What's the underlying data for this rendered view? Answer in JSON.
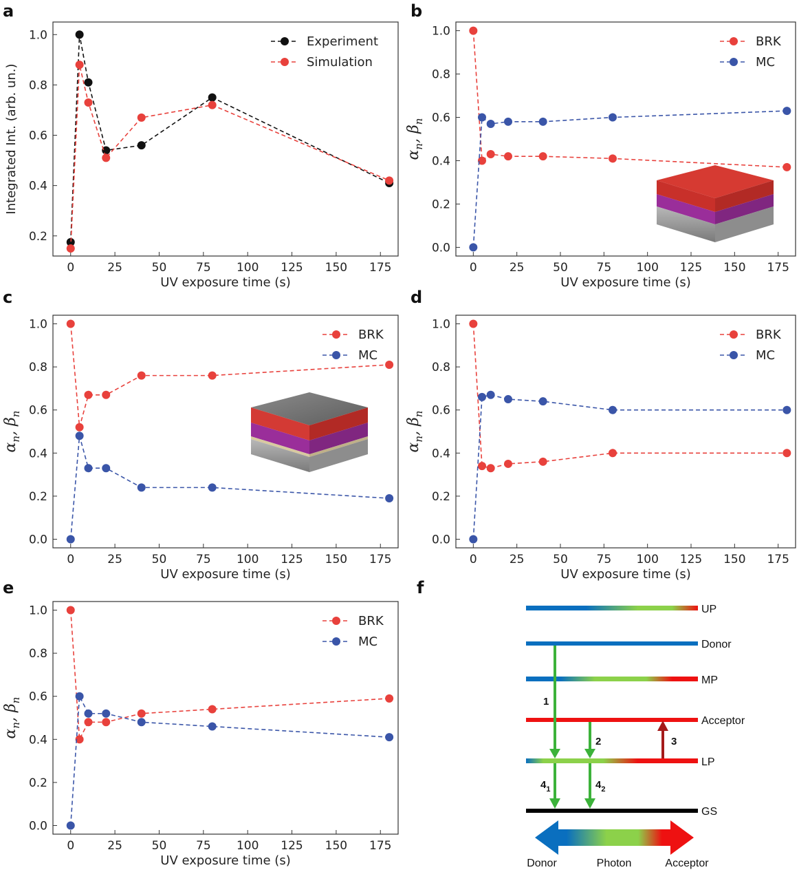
{
  "colors": {
    "experiment": "#111111",
    "simulation": "#e8413c",
    "brk": "#e8413c",
    "mc": "#3a55a8",
    "donor_blue": "#0a6fbf",
    "photon_green": "#8cd14a",
    "acceptor_red": "#ee1111",
    "arrow_green": "#3cb23a",
    "arrow_darkred": "#a51b1b",
    "gs_black": "#000000"
  },
  "chart_data": [
    {
      "panel": "a",
      "type": "line",
      "xlabel": "UV exposure time (s)",
      "ylabel": "Integrated Int. (arb. un.)",
      "xlim": [
        -10,
        185
      ],
      "ylim": [
        0.12,
        1.05
      ],
      "xticks": [
        0,
        25,
        50,
        75,
        100,
        125,
        150,
        175
      ],
      "yticks": [
        0.2,
        0.4,
        0.6,
        0.8,
        1.0
      ],
      "legend_position": "top-right",
      "series": [
        {
          "name": "Experiment",
          "color_key": "experiment",
          "x": [
            0,
            5,
            10,
            20,
            40,
            80,
            180
          ],
          "y": [
            0.175,
            1.0,
            0.81,
            0.54,
            0.56,
            0.75,
            0.41
          ]
        },
        {
          "name": "Simulation",
          "color_key": "simulation",
          "x": [
            0,
            5,
            10,
            20,
            40,
            80,
            180
          ],
          "y": [
            0.15,
            0.88,
            0.73,
            0.51,
            0.67,
            0.72,
            0.42
          ]
        }
      ]
    },
    {
      "panel": "b",
      "type": "line",
      "xlabel": "UV exposure time (s)",
      "ylabel_latex": "αn, βn",
      "xlim": [
        -10,
        185
      ],
      "ylim": [
        -0.04,
        1.04
      ],
      "xticks": [
        0,
        25,
        50,
        75,
        100,
        125,
        150,
        175
      ],
      "yticks": [
        0.0,
        0.2,
        0.4,
        0.6,
        0.8,
        1.0
      ],
      "legend_position": "top-right",
      "inset": "red-purple-grey",
      "series": [
        {
          "name": "BRK",
          "color_key": "brk",
          "x": [
            0,
            5,
            10,
            20,
            40,
            80,
            180
          ],
          "y": [
            1.0,
            0.4,
            0.43,
            0.42,
            0.42,
            0.41,
            0.37
          ]
        },
        {
          "name": "MC",
          "color_key": "mc",
          "x": [
            0,
            5,
            10,
            20,
            40,
            80,
            180
          ],
          "y": [
            0.0,
            0.6,
            0.57,
            0.58,
            0.58,
            0.6,
            0.63
          ]
        }
      ]
    },
    {
      "panel": "c",
      "type": "line",
      "xlabel": "UV exposure time (s)",
      "ylabel_latex": "αn, βn",
      "xlim": [
        -10,
        185
      ],
      "ylim": [
        -0.04,
        1.04
      ],
      "xticks": [
        0,
        25,
        50,
        75,
        100,
        125,
        150,
        175
      ],
      "yticks": [
        0.0,
        0.2,
        0.4,
        0.6,
        0.8,
        1.0
      ],
      "legend_position": "top-right",
      "inset": "grey-red-purple-grey",
      "series": [
        {
          "name": "BRK",
          "color_key": "brk",
          "x": [
            0,
            5,
            10,
            20,
            40,
            80,
            180
          ],
          "y": [
            1.0,
            0.52,
            0.67,
            0.67,
            0.76,
            0.76,
            0.81
          ]
        },
        {
          "name": "MC",
          "color_key": "mc",
          "x": [
            0,
            5,
            10,
            20,
            40,
            80,
            180
          ],
          "y": [
            0.0,
            0.48,
            0.33,
            0.33,
            0.24,
            0.24,
            0.19
          ]
        }
      ]
    },
    {
      "panel": "d",
      "type": "line",
      "xlabel": "UV exposure time (s)",
      "ylabel_latex": "αn, βn",
      "xlim": [
        -10,
        185
      ],
      "ylim": [
        -0.04,
        1.04
      ],
      "xticks": [
        0,
        25,
        50,
        75,
        100,
        125,
        150,
        175
      ],
      "yticks": [
        0.0,
        0.2,
        0.4,
        0.6,
        0.8,
        1.0
      ],
      "legend_position": "top-right",
      "series": [
        {
          "name": "BRK",
          "color_key": "brk",
          "x": [
            0,
            5,
            10,
            20,
            40,
            80,
            180
          ],
          "y": [
            1.0,
            0.34,
            0.33,
            0.35,
            0.36,
            0.4,
            0.4
          ]
        },
        {
          "name": "MC",
          "color_key": "mc",
          "x": [
            0,
            5,
            10,
            20,
            40,
            80,
            180
          ],
          "y": [
            0.0,
            0.66,
            0.67,
            0.65,
            0.64,
            0.6,
            0.6
          ]
        }
      ]
    },
    {
      "panel": "e",
      "type": "line",
      "xlabel": "UV exposure time (s)",
      "ylabel_latex": "αn, βn",
      "xlim": [
        -10,
        185
      ],
      "ylim": [
        -0.04,
        1.04
      ],
      "xticks": [
        0,
        25,
        50,
        75,
        100,
        125,
        150,
        175
      ],
      "yticks": [
        0.0,
        0.2,
        0.4,
        0.6,
        0.8,
        1.0
      ],
      "legend_position": "top-right",
      "series": [
        {
          "name": "BRK",
          "color_key": "brk",
          "x": [
            0,
            5,
            10,
            20,
            40,
            80,
            180
          ],
          "y": [
            1.0,
            0.4,
            0.48,
            0.48,
            0.52,
            0.54,
            0.59
          ]
        },
        {
          "name": "MC",
          "color_key": "mc",
          "x": [
            0,
            5,
            10,
            20,
            40,
            80,
            180
          ],
          "y": [
            0.0,
            0.6,
            0.52,
            0.52,
            0.48,
            0.46,
            0.41
          ]
        }
      ]
    }
  ],
  "diagram_f": {
    "panel": "f",
    "levels": [
      "UP",
      "Donor",
      "MP",
      "Acceptor",
      "LP",
      "GS"
    ],
    "transitions": [
      "1",
      "2",
      "3",
      "4",
      "1",
      "4",
      "2"
    ],
    "bottom_arrow_labels": [
      "Donor",
      "Photon",
      "Acceptor"
    ]
  }
}
